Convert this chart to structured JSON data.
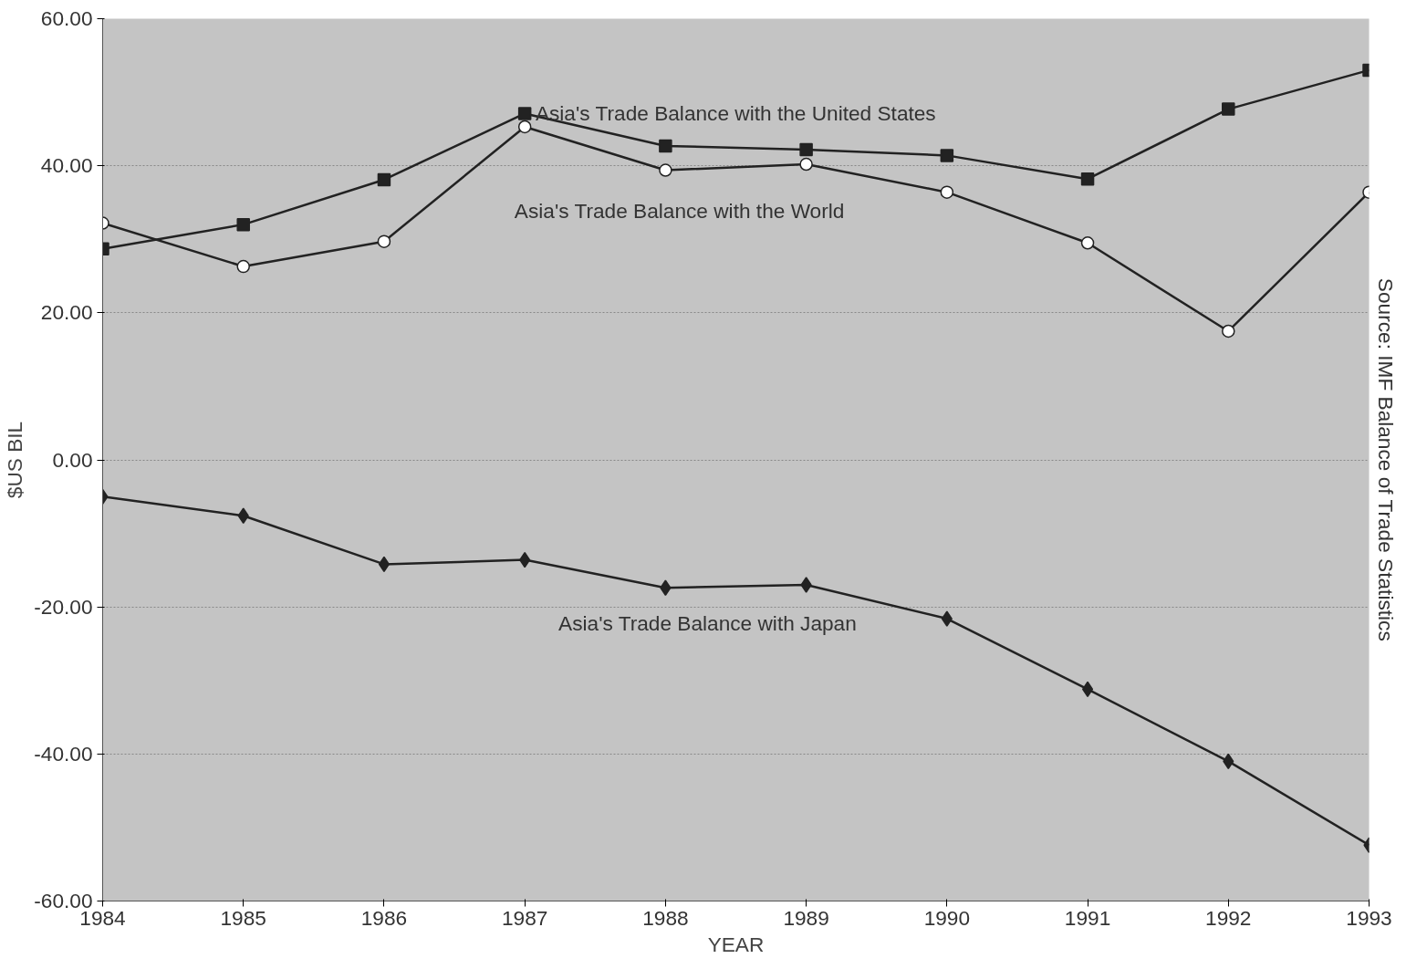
{
  "chart_data": {
    "type": "line",
    "xlabel": "YEAR",
    "ylabel": "$US BIL",
    "x": [
      1984,
      1985,
      1986,
      1987,
      1988,
      1989,
      1990,
      1991,
      1992,
      1993
    ],
    "xlim": [
      1984,
      1993
    ],
    "xticks": [
      1984,
      1985,
      1986,
      1987,
      1988,
      1989,
      1990,
      1991,
      1992,
      1993
    ],
    "ylim": [
      -60,
      60
    ],
    "yticks": [
      {
        "value": -60,
        "label": "-60.00"
      },
      {
        "value": -40,
        "label": "-40.00"
      },
      {
        "value": -20,
        "label": "-20.00"
      },
      {
        "value": 0,
        "label": "0.00"
      },
      {
        "value": 20,
        "label": "20.00"
      },
      {
        "value": 40,
        "label": "40.00"
      },
      {
        "value": 60,
        "label": "60.00"
      }
    ],
    "grid": "y",
    "legend": false,
    "line_style": "solid",
    "series": [
      {
        "name": "Asia's Trade Balance with the United States",
        "color": "#222222",
        "marker": "square",
        "values": [
          28.7,
          32.0,
          38.1,
          47.1,
          42.7,
          42.2,
          41.4,
          38.2,
          47.7,
          53.0
        ]
      },
      {
        "name": "Asia's Trade Balance with the World",
        "color": "#222222",
        "marker": "circle",
        "values": [
          32.2,
          26.3,
          29.7,
          45.3,
          39.4,
          40.2,
          36.4,
          29.5,
          17.5,
          36.4
        ]
      },
      {
        "name": "Asia's Trade Balance with Japan",
        "color": "#222222",
        "marker": "diamond",
        "values": [
          -5.0,
          -7.6,
          -14.2,
          -13.6,
          -17.4,
          -17.0,
          -21.6,
          -31.2,
          -41.0,
          -52.4
        ]
      }
    ],
    "annotations": [
      "Source: IMF Balance of Trade Statistics"
    ]
  }
}
